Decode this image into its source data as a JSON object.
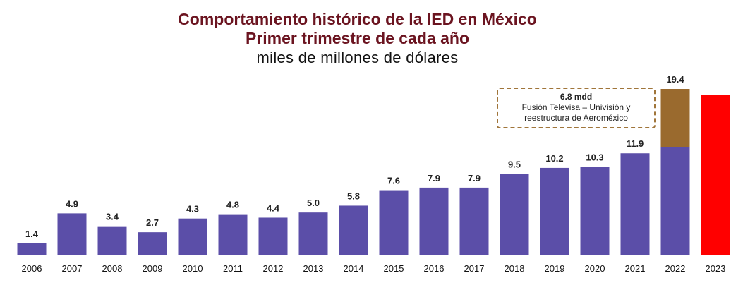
{
  "chart_data": {
    "type": "bar",
    "title": "Comportamiento histórico de la IED en México",
    "subtitle": "Primer trimestre de cada año",
    "ylabel": "miles de millones de dólares",
    "categories": [
      "2006",
      "2007",
      "2008",
      "2009",
      "2010",
      "2011",
      "2012",
      "2013",
      "2014",
      "2015",
      "2016",
      "2017",
      "2018",
      "2019",
      "2020",
      "2021",
      "2022",
      "2023"
    ],
    "values": [
      1.4,
      4.9,
      3.4,
      2.7,
      4.3,
      4.8,
      4.4,
      5.0,
      5.8,
      7.6,
      7.9,
      7.9,
      9.5,
      10.2,
      10.3,
      11.9,
      19.4,
      18.7
    ],
    "value_labels": [
      "1.4",
      "4.9",
      "3.4",
      "2.7",
      "4.3",
      "4.8",
      "4.4",
      "5.0",
      "5.8",
      "7.6",
      "7.9",
      "7.9",
      "9.5",
      "10.2",
      "10.3",
      "11.9",
      "19.4",
      ""
    ],
    "stacked_extra": {
      "category": "2022",
      "base": 12.6,
      "extra": 6.8
    },
    "ylim": [
      0,
      19.4
    ],
    "grid": false,
    "colors": {
      "base": "#5b4ea8",
      "extra": "#9a6a2e",
      "highlight": "#ff0000"
    },
    "highlight_category": "2023",
    "annotation": {
      "title": "6.8 mdd",
      "line1": "Fusión Televisa – Univisión y",
      "line2": "reestructura de Aeroméxico"
    }
  }
}
